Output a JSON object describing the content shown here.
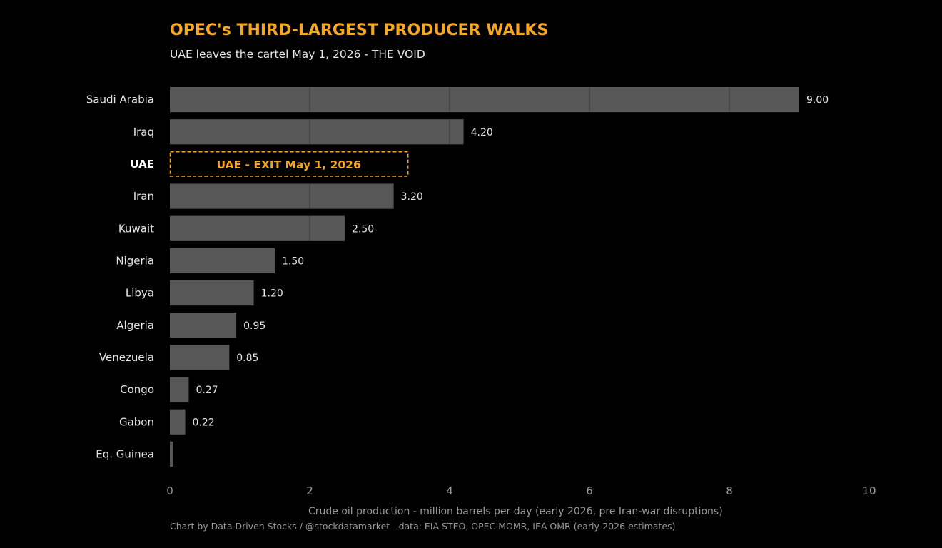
{
  "title": "OPEC's THIRD-LARGEST PRODUCER WALKS",
  "subtitle": "UAE leaves the cartel May 1, 2026  -  THE VOID",
  "credit": "Chart by Data Driven Stocks / @stockdatamarket   -   data: EIA STEO, OPEC MOMR, IEA OMR (early-2026 estimates)",
  "colors": {
    "bar": "#575757",
    "accent": "#f5a623",
    "text": "#e6e6e6",
    "muted": "#9a9a9a",
    "background": "#000000"
  },
  "chart_data": {
    "type": "bar",
    "orientation": "horizontal",
    "xlabel": "Crude oil production  -  million barrels per day  (early 2026, pre Iran-war disruptions)",
    "xlim": [
      0,
      10
    ],
    "xticks": [
      0,
      2,
      4,
      6,
      8,
      10
    ],
    "categories": [
      "Saudi Arabia",
      "Iraq",
      "UAE",
      "Iran",
      "Kuwait",
      "Nigeria",
      "Libya",
      "Algeria",
      "Venezuela",
      "Congo",
      "Gabon",
      "Eq. Guinea"
    ],
    "values": [
      9.0,
      4.2,
      null,
      3.2,
      2.5,
      1.5,
      1.2,
      0.95,
      0.85,
      0.27,
      0.22,
      0.05
    ],
    "value_labels": [
      "9.00",
      "4.20",
      "",
      "3.20",
      "2.50",
      "1.50",
      "1.20",
      "0.95",
      "0.85",
      "0.27",
      "0.22",
      ""
    ],
    "highlight": {
      "category": "UAE",
      "label": "UAE  -  EXIT  May 1, 2026",
      "span_value": 3.4
    }
  }
}
